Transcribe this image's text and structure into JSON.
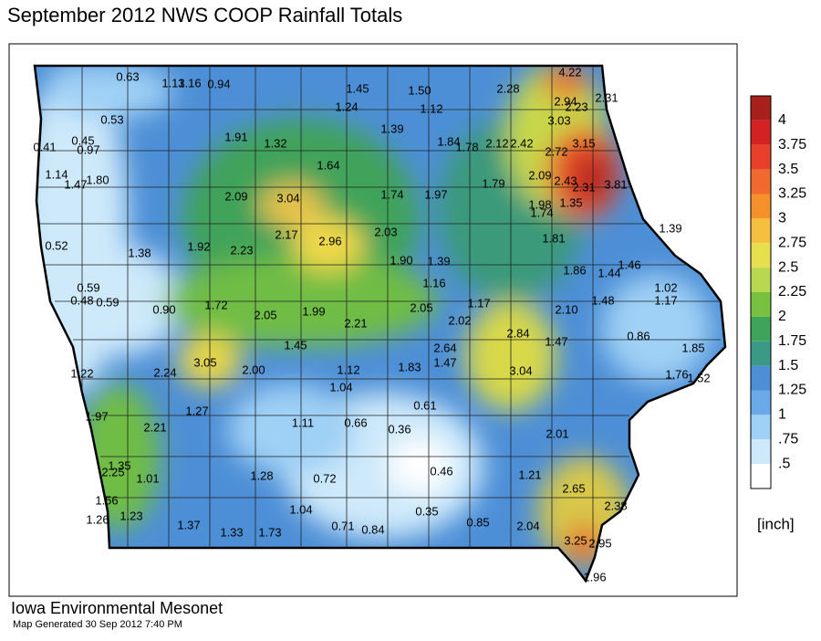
{
  "title": "September 2012 NWS COOP Rainfall Totals",
  "stations": [
    "0.63",
    "1.13",
    "1.16",
    "0.94",
    "1.45",
    "1.50",
    "1.24",
    "1.12",
    "2.28",
    "4.22",
    "2.94",
    "2.31",
    "2.23",
    "0.53",
    "3.03",
    "1.39",
    "0.41",
    "0.45",
    "0.97",
    "1.91",
    "1.32",
    "1.84",
    "1.78",
    "2.12",
    "2.42",
    "2.72",
    "3.15",
    "1.64",
    "1.14",
    "1.47",
    "1.80",
    "2.09",
    "2.43",
    "2.31",
    "3.81",
    "2.09",
    "3.04",
    "1.74",
    "1.97",
    "1.79",
    "1.98",
    "1.74",
    "1.35",
    "2.17",
    "2.96",
    "2.03",
    "1.39",
    "0.52",
    "1.38",
    "1.92",
    "2.23",
    "1.81",
    "1.90",
    "1.39",
    "1.86",
    "1.44",
    "1.46",
    "0.59",
    "1.16",
    "1.02",
    "0.48",
    "0.59",
    "0.90",
    "1.72",
    "1.17",
    "1.48",
    "1.17",
    "2.05",
    "1.99",
    "2.05",
    "2.10",
    "2.21",
    "2.02",
    "2.84",
    "0.86",
    "1.45",
    "2.64",
    "1.47",
    "1.85",
    "3.05",
    "2.00",
    "1.47",
    "1.83",
    "1.12",
    "3.04",
    "1.22",
    "2.24",
    "1.76",
    "1.52",
    "1.04",
    "0.61",
    "1.27",
    "1.97",
    "1.11",
    "0.66",
    "0.36",
    "2.21",
    "2.01",
    "2.25",
    "1.35",
    "1.01",
    "1.28",
    "0.72",
    "0.46",
    "1.21",
    "2.65",
    "1.56",
    "1.26",
    "1.23",
    "1.04",
    "0.35",
    "2.38",
    "1.37",
    "1.33",
    "1.73",
    "0.71",
    "0.84",
    "0.85",
    "2.04",
    "3.25",
    "2.95",
    "1.96"
  ],
  "legend": {
    "labels": [
      "4",
      "3.75",
      "3.5",
      "3.25",
      "3",
      "2.75",
      "2.5",
      "2.25",
      "2",
      "1.75",
      "1.5",
      "1.25",
      "1",
      ".75",
      ".5"
    ],
    "unit": "[inch]"
  },
  "footer": {
    "source": "Iowa Environmental Mesonet",
    "generated": "Map Generated 30 Sep 2012 7:40 PM"
  }
}
